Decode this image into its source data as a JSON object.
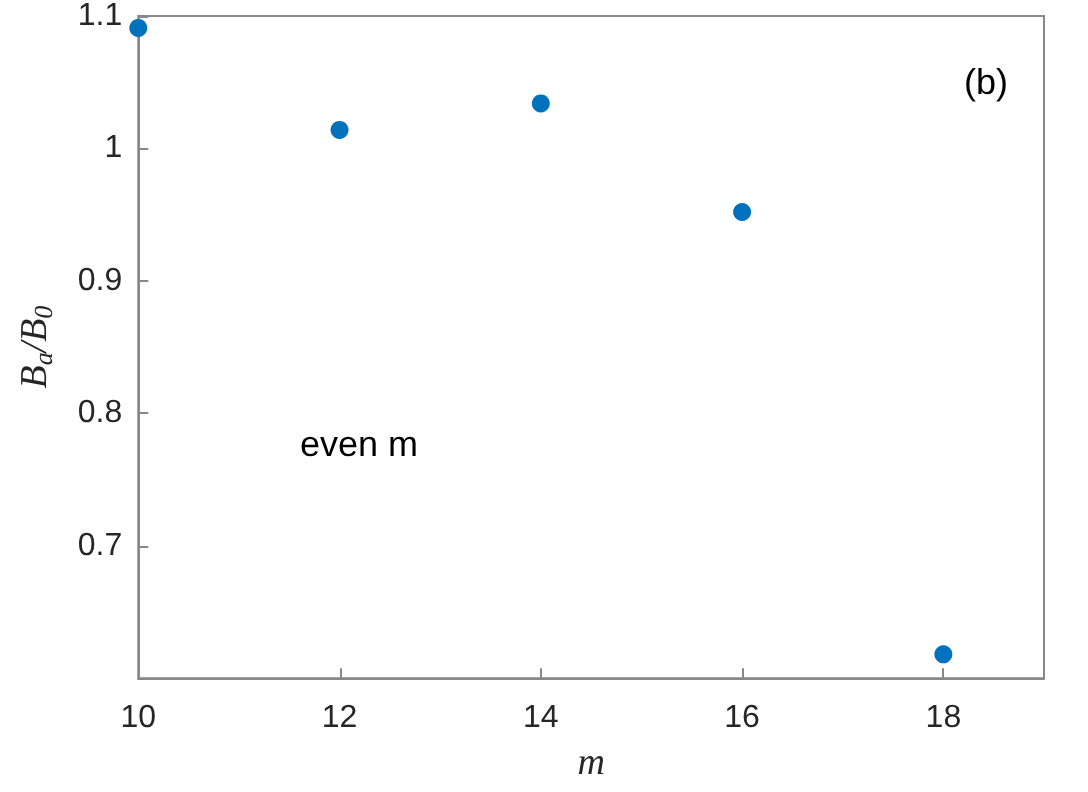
{
  "chart_data": {
    "type": "scatter",
    "xlabel": "m",
    "ylabel": "B$_{a}$/B$_{0}$",
    "annotations": [
      "(b)",
      "even m"
    ],
    "x": [
      10,
      12,
      14,
      16,
      18
    ],
    "series": [
      {
        "color": "#0072bd",
        "values": [
          1.091,
          1.014,
          1.034,
          0.952,
          0.618
        ]
      }
    ],
    "xlim": [
      10,
      19
    ],
    "xticks": [
      10,
      12,
      14,
      16,
      18
    ],
    "ylim": [
      0.6,
      1.1
    ],
    "yticks": [
      0.7,
      0.8,
      0.9,
      1,
      1.1
    ],
    "marker": "circle"
  }
}
